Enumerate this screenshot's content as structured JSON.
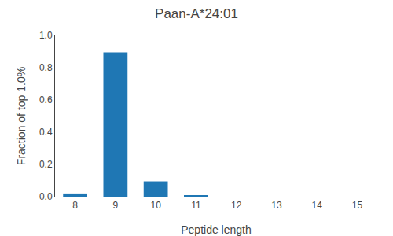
{
  "chart_data": {
    "type": "bar",
    "title": "Paan-A*24:01",
    "xlabel": "Peptide length",
    "ylabel": "Fraction of top 1.0%",
    "x": [
      8,
      9,
      10,
      11,
      12,
      13,
      14,
      15
    ],
    "values": [
      0.02,
      0.895,
      0.095,
      0.008,
      0.0,
      0.0,
      0.0,
      0.0
    ],
    "color": "#1f77b4",
    "xlim": [
      7.5,
      15.5
    ],
    "xticks": [
      8,
      9,
      10,
      11,
      12,
      13,
      14,
      15
    ],
    "ylim": [
      0.0,
      1.0
    ],
    "yticks": [
      {
        "value": 0.0,
        "label": "0.0"
      },
      0.2,
      0.4,
      0.6,
      0.8,
      {
        "value": 1.0,
        "label": "1.0"
      }
    ],
    "grid": false
  }
}
